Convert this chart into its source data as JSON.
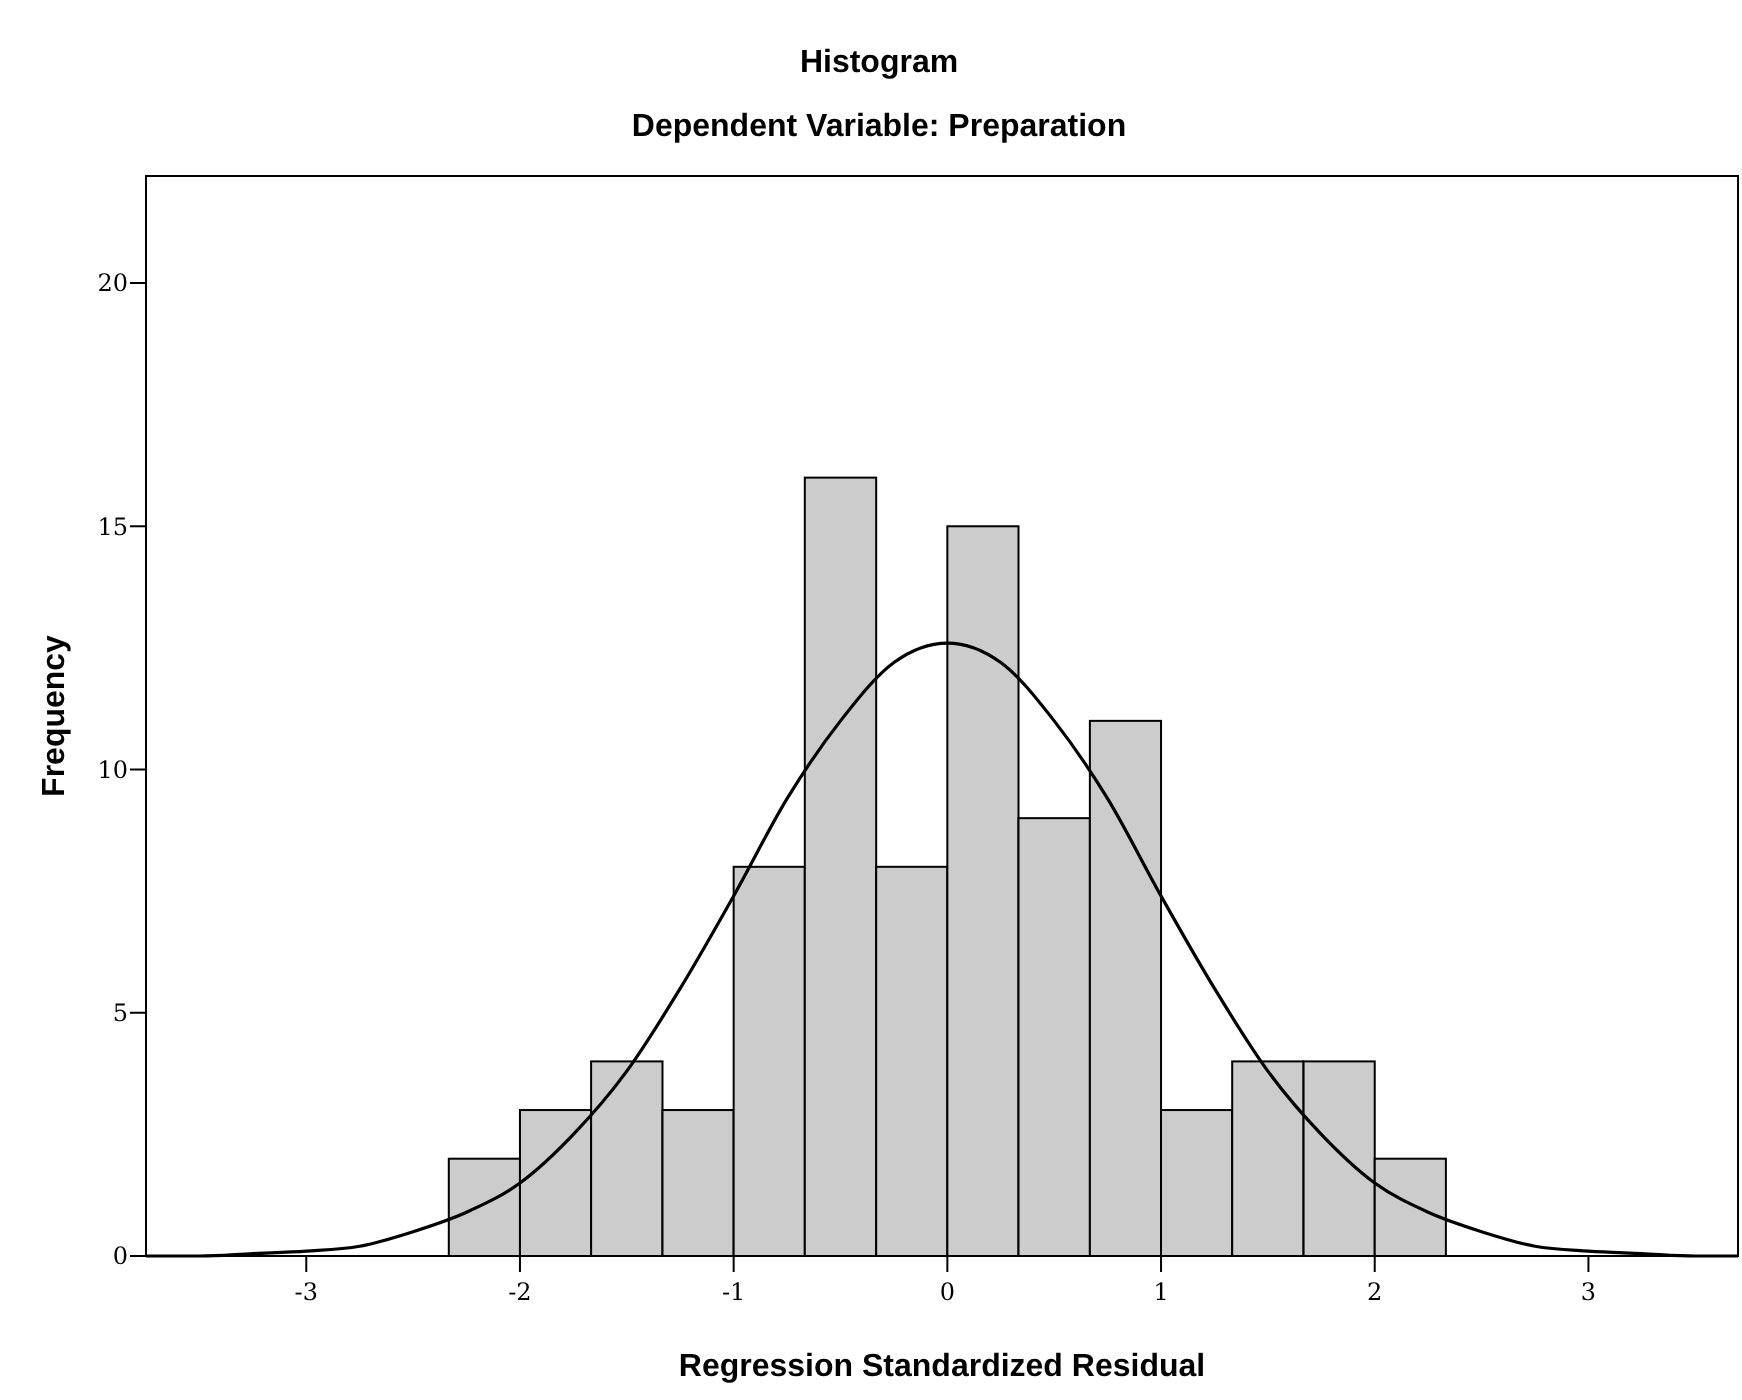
{
  "chart_data": {
    "type": "histogram",
    "title": "Histogram",
    "subtitle": "Dependent Variable: Preparation",
    "xlabel": "Regression Standardized Residual",
    "ylabel": "Frequency",
    "bins": [
      -2.333,
      -2,
      -1.667,
      -1.333,
      -1,
      -0.667,
      -0.333,
      0,
      0.333,
      0.667,
      1,
      1.333,
      1.667,
      2,
      2.333
    ],
    "values": [
      2,
      3,
      4,
      3,
      8,
      16,
      8,
      15,
      9,
      11,
      3,
      4,
      4,
      2
    ],
    "color": "#cccccc",
    "series": [
      {
        "type": "line",
        "color": "#000000",
        "x": [
          -3.75,
          -3.5,
          -3.25,
          -3,
          -2.75,
          -2.5,
          -2.25,
          -2,
          -1.75,
          -1.5,
          -1.25,
          -1,
          -0.75,
          -0.5,
          -0.25,
          0,
          0.25,
          0.5,
          0.75,
          1,
          1.25,
          1.5,
          1.75,
          2,
          2.25,
          2.5,
          2.75,
          3,
          3.25,
          3.5,
          3.7
        ],
        "values": [
          0,
          0,
          0.05,
          0.1,
          0.2,
          0.5,
          0.9,
          1.5,
          2.5,
          3.8,
          5.5,
          7.4,
          9.4,
          11,
          12.2,
          12.6,
          12.2,
          11,
          9.4,
          7.4,
          5.5,
          3.8,
          2.5,
          1.5,
          0.9,
          0.5,
          0.2,
          0.1,
          0.05,
          0,
          0
        ]
      }
    ],
    "xlim": [
      -3.75,
      3.7
    ],
    "ylim": [
      0,
      22.2
    ],
    "xticks": [
      -3,
      -2,
      -1,
      0,
      1,
      2,
      3
    ],
    "yticks": [
      0,
      5,
      10,
      15,
      20
    ],
    "grid": false
  }
}
